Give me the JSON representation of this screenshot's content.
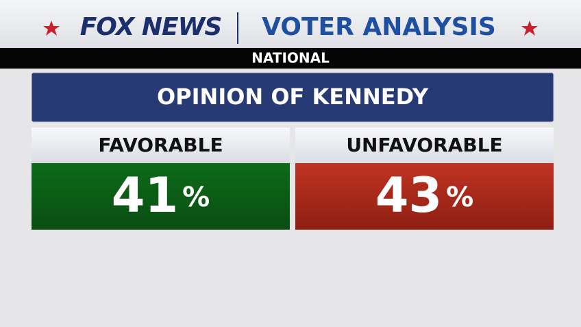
{
  "header": {
    "brand": "FOX NEWS",
    "title": "VOTER ANALYSIS",
    "region": "NATIONAL"
  },
  "question": "OPINION OF KENNEDY",
  "options": [
    {
      "label": "FAVORABLE",
      "value": 41,
      "unit": "%"
    },
    {
      "label": "UNFAVORABLE",
      "value": 43,
      "unit": "%"
    }
  ]
}
